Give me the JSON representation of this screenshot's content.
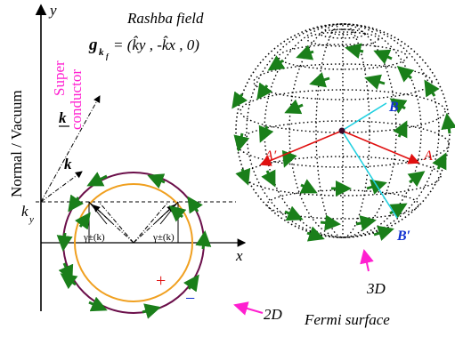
{
  "labels": {
    "axis_y": "y",
    "axis_x": "x",
    "side_vertical": "Normal / Vacuum",
    "super_line1": "Super",
    "super_line2": "conductor",
    "k_bar": "k",
    "k": "k",
    "k_y_main": "k",
    "k_y_sub": "y",
    "gamma_left": "γ±(k)",
    "gamma_right": "γ±(k)",
    "plus": "+",
    "minus": "−",
    "rashba_title": "Rashba field",
    "rashba_g": "g",
    "rashba_g_sub": "k",
    "rashba_g_subsub": "f",
    "rashba_formula": "= (k̂y , -k̂x , 0)",
    "point_A": "A",
    "point_A_prime": "A′",
    "point_B": "B",
    "point_B_prime": "B′",
    "label_2D": "2D",
    "label_3D": "3D",
    "fermi_surface": "Fermi surface"
  },
  "colors": {
    "arrow_green": "#1a7f1a",
    "outer_circle": "#6b0f4a",
    "inner_circle": "#f0a020",
    "magenta": "#ff1fd0",
    "red": "#e01010",
    "cyan": "#20d0e0",
    "blue": "#1030d0",
    "plus_red": "#e01010",
    "minus_blue": "#1030d0"
  }
}
